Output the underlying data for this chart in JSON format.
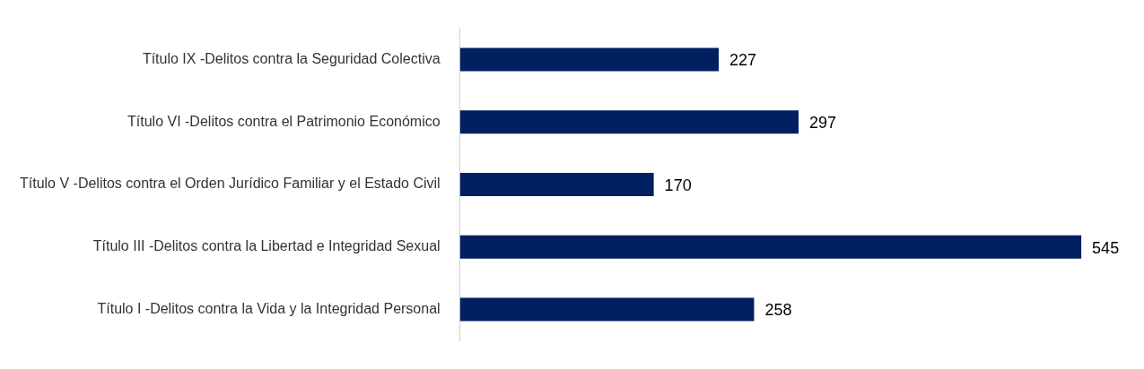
{
  "chart_data": {
    "type": "bar",
    "orientation": "horizontal",
    "categories": [
      "Título IX -Delitos contra la Seguridad Colectiva",
      "Título VI -Delitos contra el Patrimonio Económico",
      "Título V -Delitos contra el Orden Jurídico Familiar y el Estado Civil",
      "Título III -Delitos contra la Libertad e Integridad Sexual",
      "Título I -Delitos contra la Vida y la Integridad Personal"
    ],
    "values": [
      227,
      297,
      170,
      545,
      258
    ],
    "color": "#002060",
    "data_labels": true,
    "grid": false,
    "legend": false,
    "tick_labels": "y"
  }
}
